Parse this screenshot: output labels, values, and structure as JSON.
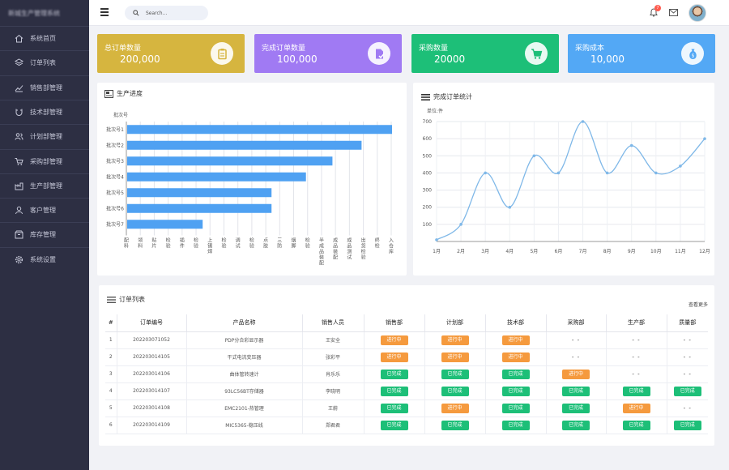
{
  "app": {
    "logo_text": "新城生产管理系统"
  },
  "sidebar": {
    "items": [
      {
        "label": "系统首页",
        "icon": "home-icon"
      },
      {
        "label": "订单列表",
        "icon": "layers-icon"
      },
      {
        "label": "销售部管理",
        "icon": "trend-icon"
      },
      {
        "label": "技术部管理",
        "icon": "magnet-icon"
      },
      {
        "label": "计划部管理",
        "icon": "users-icon"
      },
      {
        "label": "采购部管理",
        "icon": "cart-icon"
      },
      {
        "label": "生产部管理",
        "icon": "factory-icon"
      },
      {
        "label": "客户管理",
        "icon": "user-icon"
      },
      {
        "label": "库存管理",
        "icon": "box-icon"
      },
      {
        "label": "系统设置",
        "icon": "gear-icon"
      }
    ]
  },
  "topbar": {
    "search_placeholder": "Search...",
    "notification_count": "7"
  },
  "stats": [
    {
      "label": "总订单数量",
      "value": "200,000",
      "color": "#d6b53f",
      "icon": "clipboard-icon"
    },
    {
      "label": "完成订单数量",
      "value": "100,000",
      "color": "#a07af3",
      "icon": "file-check-icon"
    },
    {
      "label": "采购数量",
      "value": "20000",
      "color": "#1dbf78",
      "icon": "cart-icon"
    },
    {
      "label": "采购成本",
      "value": "10,000",
      "color": "#53a8f5",
      "icon": "money-bag-icon"
    }
  ],
  "progress_panel": {
    "title": "生产进度"
  },
  "monthly_panel": {
    "title": "完成订单统计"
  },
  "chart_data": [
    {
      "type": "bar",
      "orientation": "horizontal",
      "title": "生产进度",
      "ylabel": "批次号",
      "categories": [
        "批次号1",
        "批次号2",
        "批次号3",
        "批次号4",
        "批次号5",
        "批次号6",
        "批次号7"
      ],
      "stages": [
        "配料",
        "领料",
        "贴片",
        "检验",
        "插件",
        "检验",
        "上锡焊",
        "检验",
        "调试",
        "检验",
        "点胶",
        "三防",
        "烟脚",
        "检验",
        "半成品装配",
        "成品装配",
        "成品测试",
        "出货检验",
        "终检",
        "入仓库"
      ],
      "values": [
        20,
        17.7,
        15.5,
        13.5,
        10.9,
        10.9,
        5.7
      ],
      "xlim": [
        0,
        20
      ],
      "bar_color": "#4fa1f2",
      "grid": true
    },
    {
      "type": "line",
      "title": "完成订单统计",
      "ylabel": "单位:件",
      "x": [
        "1月",
        "2月",
        "3月",
        "4月",
        "5月",
        "6月",
        "7月",
        "8月",
        "9月",
        "10月",
        "11月",
        "12月"
      ],
      "values": [
        10,
        100,
        400,
        200,
        500,
        400,
        700,
        400,
        560,
        400,
        440,
        600
      ],
      "ylim": [
        0,
        700
      ],
      "yticks": [
        100,
        200,
        300,
        400,
        500,
        600,
        700
      ],
      "smooth": true,
      "line_color": "#7fb8e8",
      "grid": true
    }
  ],
  "orders": {
    "title": "订单列表",
    "more_link": "查看更多",
    "columns": [
      "#",
      "订单编号",
      "产品名称",
      "销售人员",
      "销售部",
      "计划部",
      "技术部",
      "采购部",
      "生产部",
      "质量部"
    ],
    "status_labels": {
      "run": "进行中",
      "done": "已完成",
      "none": "- -"
    },
    "rows": [
      {
        "num": "1",
        "order_no": "202203071052",
        "product": "PDP分合彩显示器",
        "sales": "王安全",
        "status": [
          "run",
          "run",
          "run",
          "none",
          "none",
          "none"
        ]
      },
      {
        "num": "2",
        "order_no": "202203014105",
        "product": "干式电流变压器",
        "sales": "张彩平",
        "status": [
          "run",
          "run",
          "run",
          "none",
          "none",
          "none"
        ]
      },
      {
        "num": "3",
        "order_no": "202203014106",
        "product": "曲体管转速计",
        "sales": "肖乐乐",
        "status": [
          "done",
          "done",
          "done",
          "run",
          "none",
          "none"
        ]
      },
      {
        "num": "4",
        "order_no": "202203014107",
        "product": "93LC56BT存储器",
        "sales": "李晓明",
        "status": [
          "done",
          "done",
          "done",
          "done",
          "done",
          "done"
        ]
      },
      {
        "num": "5",
        "order_no": "202203014108",
        "product": "EMC2101-热管理",
        "sales": "王蔚",
        "status": [
          "done",
          "run",
          "done",
          "done",
          "run",
          "none"
        ]
      },
      {
        "num": "6",
        "order_no": "202203014109",
        "product": "MIC5365-稳压线",
        "sales": "郑君君",
        "status": [
          "done",
          "done",
          "done",
          "done",
          "done",
          "done"
        ]
      }
    ]
  }
}
